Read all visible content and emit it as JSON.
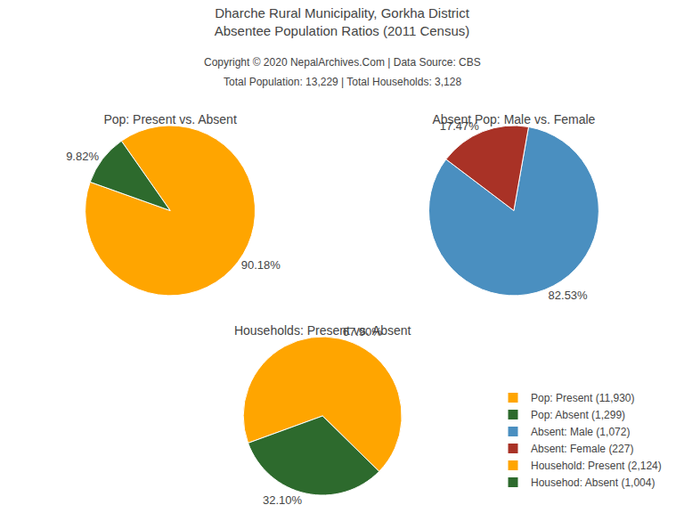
{
  "title": "Dharche Rural Municipality, Gorkha District\nAbsentee Population Ratios (2011 Census)",
  "subtitle": "Copyright © 2020 NepalArchives.Com | Data Source: CBS",
  "annotations": [
    "Total Population: 13,229 | Total Households: 3,128"
  ],
  "legend": "lower right",
  "chart_data": [
    {
      "type": "pie",
      "title": "Pop: Present vs. Absent",
      "categories": [
        "Pop: Present (11,930)",
        "Pop: Absent (1,299)"
      ],
      "values": [
        90.18,
        9.82
      ],
      "value_labels": [
        "90.18%",
        "9.82%"
      ],
      "colors": [
        "#FFA500",
        "#2d6a2d"
      ],
      "data_labels": true
    },
    {
      "type": "pie",
      "title": "Absent Pop: Male vs. Female",
      "categories": [
        "Absent: Male (1,072)",
        "Absent: Female (227)"
      ],
      "values": [
        82.53,
        17.47
      ],
      "value_labels": [
        "82.53%",
        "17.47%"
      ],
      "colors": [
        "#4a8fc0",
        "#a93226"
      ],
      "data_labels": true
    },
    {
      "type": "pie",
      "title": "Households: Present vs. Absent",
      "categories": [
        "Household: Present (2,124)",
        "Househod: Absent (1,004)"
      ],
      "values": [
        67.9,
        32.1
      ],
      "value_labels": [
        "67.90%",
        "32.10%"
      ],
      "colors": [
        "#FFA500",
        "#2d6a2d"
      ],
      "data_labels": true
    }
  ]
}
